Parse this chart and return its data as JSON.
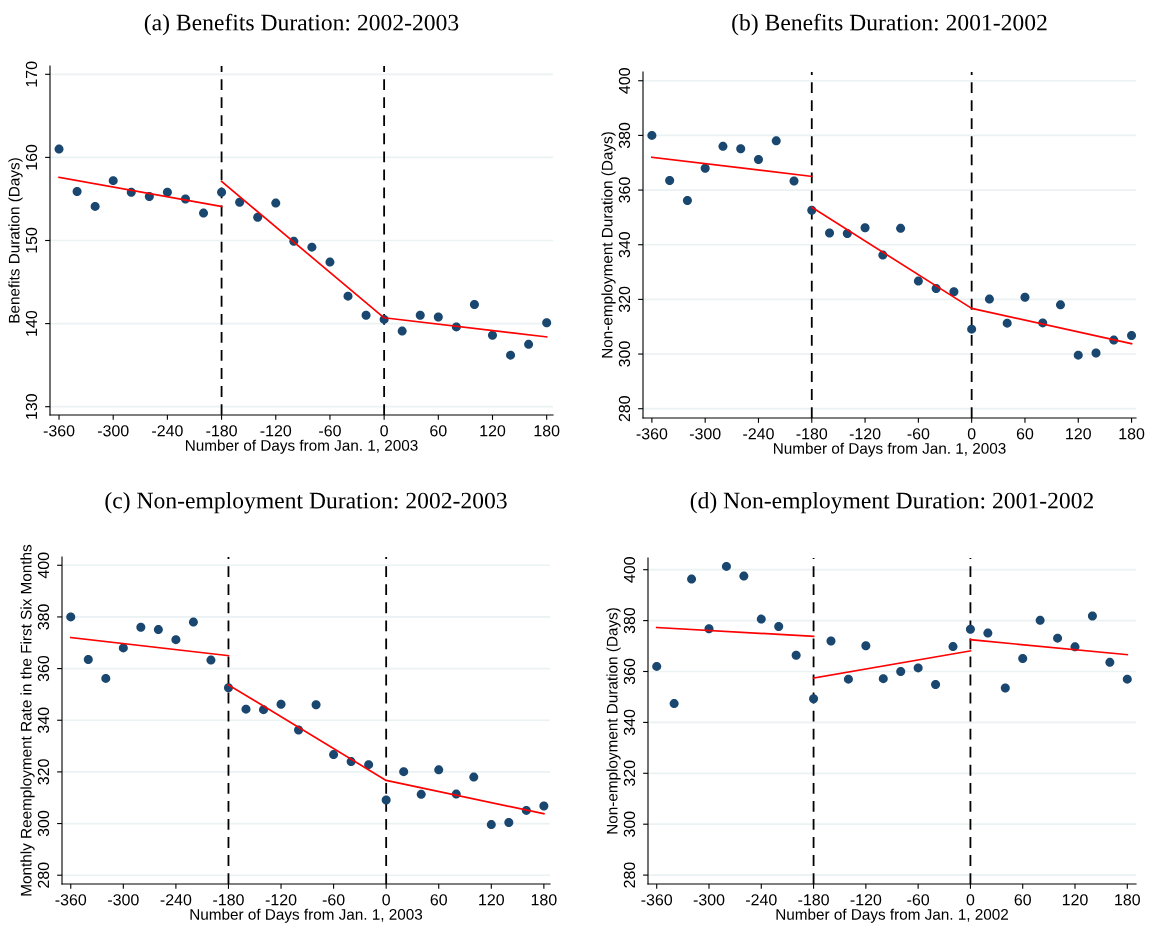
{
  "chart_data": [
    {
      "type": "scatter",
      "title": "(a) Benefits Duration: 2002-2003",
      "xlabel": "Number of Days from Jan. 1, 2003",
      "ylabel": "Benefits Duration (Days)",
      "xlim": [
        -370,
        187
      ],
      "ylim": [
        129,
        171
      ],
      "xticks": [
        -360,
        -300,
        -240,
        -180,
        -120,
        -60,
        0,
        60,
        120,
        180
      ],
      "yticks": [
        130,
        140,
        150,
        160,
        170
      ],
      "grid": "y",
      "x": [
        -360,
        -340,
        -320,
        -300,
        -280,
        -260,
        -240,
        -220,
        -200,
        -180,
        -160,
        -140,
        -120,
        -100,
        -80,
        -60,
        -40,
        -20,
        0,
        20,
        40,
        60,
        80,
        100,
        120,
        140,
        160,
        180
      ],
      "series": [
        {
          "marker": "circle",
          "color": "#1a476f",
          "values": [
            161,
            155.9,
            154.1,
            157.2,
            155.8,
            155.3,
            155.8,
            155.0,
            153.3,
            155.8,
            154.6,
            152.8,
            154.5,
            149.9,
            149.2,
            147.4,
            143.3,
            141.0,
            140.5,
            139.1,
            141.0,
            140.8,
            139.6,
            142.3,
            138.6,
            136.2,
            137.5,
            140.1
          ]
        },
        {
          "type": "line",
          "color": "#ff0000",
          "x": [
            -360,
            -180
          ],
          "values": [
            157.6,
            154.1
          ]
        },
        {
          "type": "line",
          "color": "#ff0000",
          "x": [
            -180,
            0,
            180
          ],
          "values": [
            157.1,
            140.7,
            138.4
          ]
        }
      ],
      "ref_lines": [
        {
          "axis": "x",
          "value": -180,
          "color": "#000000",
          "line_style": "dashed"
        },
        {
          "axis": "x",
          "value": 0,
          "color": "#000000",
          "line_style": "dashed"
        }
      ]
    },
    {
      "type": "scatter",
      "title": "(b) Benefits Duration: 2001-2002",
      "xlabel": "Number of Days from Jan. 1, 2003",
      "ylabel": "Non-employment Duration (Days)",
      "xlim": [
        -370,
        185
      ],
      "ylim": [
        276.6,
        403.2
      ],
      "xticks": [
        -360,
        -300,
        -240,
        -180,
        -120,
        -60,
        0,
        60,
        120,
        180
      ],
      "yticks": [
        280,
        300,
        320,
        340,
        360,
        380,
        400
      ],
      "grid": "y",
      "x": [
        -360,
        -340,
        -320,
        -300,
        -280,
        -260,
        -240,
        -220,
        -200,
        -180,
        -160,
        -140,
        -120,
        -100,
        -80,
        -60,
        -40,
        -20,
        0,
        20,
        40,
        60,
        80,
        100,
        120,
        140,
        160,
        180
      ],
      "series": [
        {
          "marker": "circle",
          "color": "#1a476f",
          "values": [
            380,
            363.5,
            356.2,
            368,
            376,
            375.1,
            371.2,
            378,
            363.3,
            352.6,
            344.3,
            344.1,
            346.2,
            336.2,
            346,
            326.7,
            324,
            322.8,
            309.1,
            320.1,
            311.3,
            320.8,
            311.4,
            318,
            299.6,
            300.4,
            305.1,
            306.8
          ]
        },
        {
          "type": "line",
          "color": "#ff0000",
          "x": [
            -360,
            -180
          ],
          "values": [
            372,
            365
          ]
        },
        {
          "type": "line",
          "color": "#ff0000",
          "x": [
            -180,
            0,
            180
          ],
          "values": [
            353.7,
            316.7,
            303.8
          ]
        }
      ],
      "ref_lines": [
        {
          "axis": "x",
          "value": -180,
          "color": "#000000",
          "line_style": "dashed"
        },
        {
          "axis": "x",
          "value": 0,
          "color": "#000000",
          "line_style": "dashed"
        }
      ]
    },
    {
      "type": "scatter",
      "title": "(c) Non-employment Duration: 2002-2003",
      "xlabel": "Number of Days from Jan. 1, 2003",
      "ylabel": "Monthly Reemployment Rate in the First Six Months",
      "xlim": [
        -370,
        187
      ],
      "ylim": [
        276.6,
        403.2
      ],
      "xticks": [
        -360,
        -300,
        -240,
        -180,
        -120,
        -60,
        0,
        60,
        120,
        180
      ],
      "yticks": [
        280,
        300,
        320,
        340,
        360,
        380,
        400
      ],
      "grid": "y",
      "x": [
        -360,
        -340,
        -320,
        -300,
        -280,
        -260,
        -240,
        -220,
        -200,
        -180,
        -160,
        -140,
        -120,
        -100,
        -80,
        -60,
        -40,
        -20,
        0,
        20,
        40,
        60,
        80,
        100,
        120,
        140,
        160,
        180
      ],
      "series": [
        {
          "marker": "circle",
          "color": "#1a476f",
          "values": [
            380,
            363.5,
            356.2,
            368,
            376,
            375.1,
            371.2,
            378,
            363.3,
            352.6,
            344.3,
            344.1,
            346.2,
            336.2,
            346,
            326.7,
            324,
            322.8,
            309.1,
            320.1,
            311.3,
            320.8,
            311.4,
            318,
            299.6,
            300.4,
            305.1,
            306.8
          ]
        },
        {
          "type": "line",
          "color": "#ff0000",
          "x": [
            -360,
            -180
          ],
          "values": [
            372,
            365
          ]
        },
        {
          "type": "line",
          "color": "#ff0000",
          "x": [
            -180,
            0,
            180
          ],
          "values": [
            353.7,
            316.7,
            303.8
          ]
        }
      ],
      "ref_lines": [
        {
          "axis": "x",
          "value": -180,
          "color": "#000000",
          "line_style": "dashed"
        },
        {
          "axis": "x",
          "value": 0,
          "color": "#000000",
          "line_style": "dashed"
        }
      ]
    },
    {
      "type": "scatter",
      "title": "(d) Non-employment Duration: 2001-2002",
      "xlabel": "Number of Days from Jan. 1, 2002",
      "ylabel": "Non-employment Duration (Days)",
      "xlim": [
        -370,
        190
      ],
      "ylim": [
        276.5,
        404.6
      ],
      "xticks": [
        -360,
        -300,
        -240,
        -180,
        -120,
        -60,
        0,
        60,
        120,
        180
      ],
      "yticks": [
        280,
        300,
        320,
        340,
        360,
        380,
        400
      ],
      "grid": "y",
      "x": [
        -360,
        -340,
        -320,
        -300,
        -280,
        -260,
        -240,
        -220,
        -200,
        -180,
        -160,
        -140,
        -120,
        -100,
        -80,
        -60,
        -40,
        -20,
        0,
        20,
        40,
        60,
        80,
        100,
        120,
        140,
        160,
        180
      ],
      "series": [
        {
          "marker": "circle",
          "color": "#1a476f",
          "values": [
            362,
            347.4,
            396.3,
            376.8,
            401.3,
            397.5,
            380.6,
            377.7,
            366.4,
            349.3,
            372,
            357,
            370.1,
            357.2,
            360,
            361.4,
            354.9,
            369.8,
            376.6,
            375.1,
            353.5,
            365.1,
            380.1,
            373.1,
            369.7,
            381.8,
            363.6,
            357
          ]
        },
        {
          "type": "line",
          "color": "#ff0000",
          "x": [
            -360,
            -180
          ],
          "values": [
            377.3,
            373.8
          ]
        },
        {
          "type": "line",
          "color": "#ff0000",
          "x": [
            -180,
            0
          ],
          "values": [
            357.4,
            368.1
          ]
        },
        {
          "type": "line",
          "color": "#ff0000",
          "x": [
            0,
            180
          ],
          "values": [
            372.5,
            366.6
          ]
        }
      ],
      "ref_lines": [
        {
          "axis": "x",
          "value": -180,
          "color": "#000000",
          "line_style": "dashed"
        },
        {
          "axis": "x",
          "value": 0,
          "color": "#000000",
          "line_style": "dashed"
        }
      ]
    }
  ]
}
